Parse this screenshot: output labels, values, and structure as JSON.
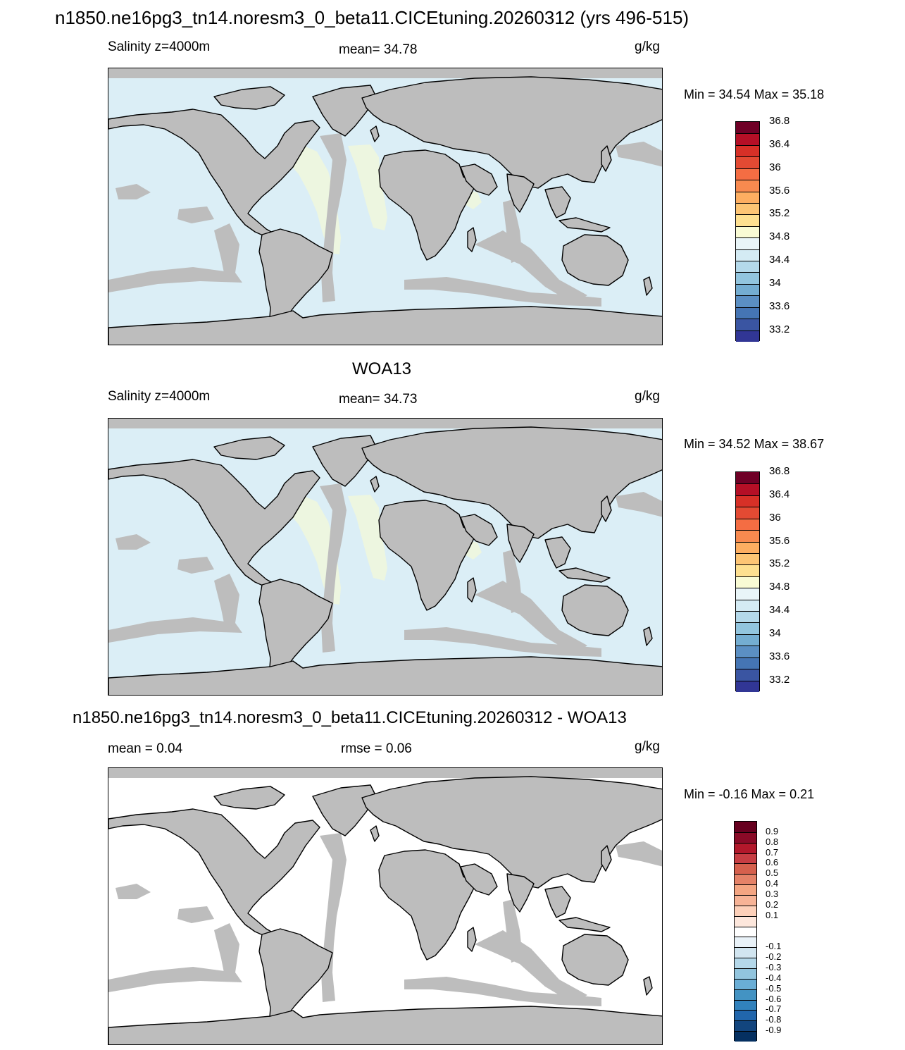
{
  "top_title": "n1850.ne16pg3_tn14.noresm3_0_beta11.CICEtuning.20260312 (yrs 496-515)",
  "panels": [
    {
      "title": "",
      "left_label": "Salinity z=4000m",
      "center_label": "mean=  34.78",
      "units": "g/kg",
      "minmax": "Min =  34.54 Max =  35.18",
      "ocean_color": "#dbeef6",
      "band_color": "#edf6e0",
      "colorbar": {
        "colors": [
          "#313695",
          "#3a55a2",
          "#4575b4",
          "#5b8fc3",
          "#74add1",
          "#92c5de",
          "#b4d9ea",
          "#d4ebf4",
          "#e9f5f8",
          "#f9fbd4",
          "#fee090",
          "#fdc574",
          "#fdae61",
          "#f88a4f",
          "#f46d43",
          "#e34a33",
          "#d73027",
          "#b50f26",
          "#6f0026"
        ],
        "labels": [
          "33.2",
          "33.6",
          "34",
          "34.4",
          "34.8",
          "35.2",
          "35.6",
          "36",
          "36.4",
          "36.8"
        ]
      }
    },
    {
      "title": "WOA13",
      "left_label": "Salinity z=4000m",
      "center_label": "mean=  34.73",
      "units": "g/kg",
      "minmax": "Min =  34.52 Max =  38.67",
      "ocean_color": "#dbeef6",
      "band_color": "#edf6e0",
      "colorbar": {
        "colors": [
          "#313695",
          "#3a55a2",
          "#4575b4",
          "#5b8fc3",
          "#74add1",
          "#92c5de",
          "#b4d9ea",
          "#d4ebf4",
          "#e9f5f8",
          "#f9fbd4",
          "#fee090",
          "#fdc574",
          "#fdae61",
          "#f88a4f",
          "#f46d43",
          "#e34a33",
          "#d73027",
          "#b50f26",
          "#6f0026"
        ],
        "labels": [
          "33.2",
          "33.6",
          "34",
          "34.4",
          "34.8",
          "35.2",
          "35.6",
          "36",
          "36.4",
          "36.8"
        ]
      }
    },
    {
      "title": "n1850.ne16pg3_tn14.noresm3_0_beta11.CICEtuning.20260312 - WOA13",
      "left_label": "mean =   0.04",
      "center_label": "rmse =   0.06",
      "units": "g/kg",
      "minmax": "Min =  -0.16 Max =   0.21",
      "ocean_color": "#ffffff",
      "band_color": "#ffffff",
      "colorbar": {
        "colors": [
          "#053061",
          "#12457e",
          "#2166ac",
          "#3182bd",
          "#4393c3",
          "#6aaed6",
          "#92c5de",
          "#b4d8ea",
          "#d1e5f0",
          "#e9f2f8",
          "#ffffff",
          "#fde7dc",
          "#fdd0b9",
          "#f7b396",
          "#f4a582",
          "#e58268",
          "#d6604d",
          "#c73d43",
          "#b2182b",
          "#8a0a27",
          "#67001f"
        ],
        "labels": [
          "-0.9",
          "-0.8",
          "-0.7",
          "-0.6",
          "-0.5",
          "-0.4",
          "-0.3",
          "-0.2",
          "-0.1",
          "0.1",
          "0.2",
          "0.3",
          "0.4",
          "0.5",
          "0.6",
          "0.7",
          "0.8",
          "0.9"
        ]
      }
    }
  ]
}
